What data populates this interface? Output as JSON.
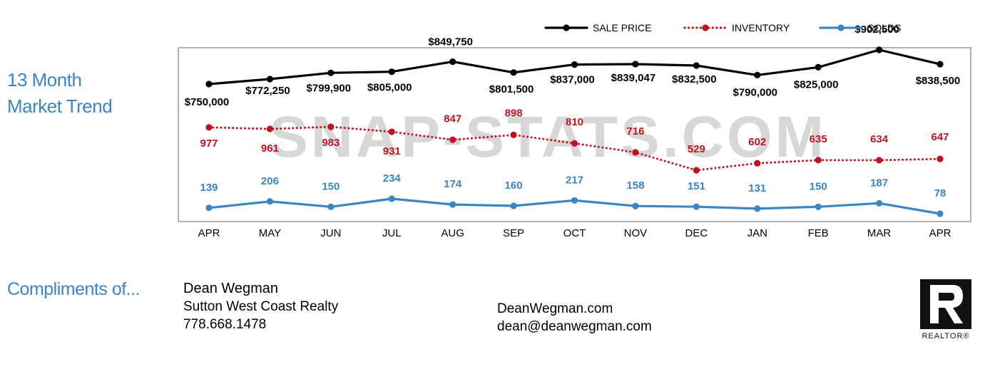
{
  "side_title": {
    "line1": "13 Month",
    "line2": "Market Trend"
  },
  "watermark": "SNAP-STATS.COM",
  "footer": {
    "compliments": "Compliments of...",
    "agent_name": "Dean Wegman",
    "brokerage": "Sutton West Coast Realty",
    "phone": "778.668.1478",
    "website": "DeanWegman.com",
    "email": "dean@deanwegman.com",
    "realtor_label": "REALTOR®"
  },
  "colors": {
    "sale_price": "#000000",
    "inventory": "#c0121f",
    "solds": "#3a85c6",
    "accent": "#3a85c6",
    "watermark": "#c9c9c9"
  },
  "chart_data": {
    "type": "line",
    "categories": [
      "APR",
      "MAY",
      "JUN",
      "JUL",
      "AUG",
      "SEP",
      "OCT",
      "NOV",
      "DEC",
      "JAN",
      "FEB",
      "MAR",
      "APR"
    ],
    "legend_position": "top-right",
    "grid": false,
    "series": [
      {
        "name": "SALE PRICE",
        "style": "solid",
        "values": [
          750000,
          772250,
          799900,
          805000,
          849750,
          801500,
          837000,
          839047,
          832500,
          790000,
          825000,
          902500,
          838500
        ],
        "labels": [
          "$750,000",
          "$772,250",
          "$799,900",
          "$805,000",
          "$849,750",
          "$801,500",
          "$837,000",
          "$839,047",
          "$832,500",
          "$790,000",
          "$825,000",
          "$902,500",
          "$838,500"
        ]
      },
      {
        "name": "INVENTORY",
        "style": "dotted",
        "values": [
          977,
          961,
          983,
          931,
          847,
          898,
          810,
          716,
          529,
          602,
          635,
          634,
          647
        ],
        "labels": [
          "977",
          "961",
          "983",
          "931",
          "847",
          "898",
          "810",
          "716",
          "529",
          "602",
          "635",
          "634",
          "647"
        ]
      },
      {
        "name": "SOLDS",
        "style": "solid",
        "values": [
          139,
          206,
          150,
          234,
          174,
          160,
          217,
          158,
          151,
          131,
          150,
          187,
          78
        ],
        "labels": [
          "139",
          "206",
          "150",
          "234",
          "174",
          "160",
          "217",
          "158",
          "151",
          "131",
          "150",
          "187",
          "78"
        ]
      }
    ]
  }
}
